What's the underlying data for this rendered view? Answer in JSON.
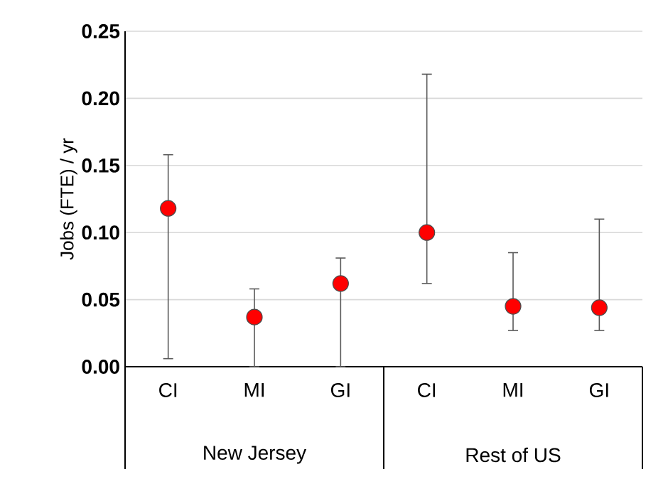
{
  "chart_data": {
    "type": "scatter",
    "ylabel": "Jobs (FTE) / yr",
    "categories": [
      "CI",
      "MI",
      "GI",
      "CI",
      "MI",
      "GI"
    ],
    "values": [
      0.118,
      0.037,
      0.062,
      0.1,
      0.045,
      0.044
    ],
    "errors": [
      [
        0.006,
        0.158
      ],
      [
        0.0,
        0.058
      ],
      [
        0.0,
        0.081
      ],
      [
        0.062,
        0.218
      ],
      [
        0.027,
        0.085
      ],
      [
        0.027,
        0.11
      ]
    ],
    "color": "#ff0000",
    "grid": "y",
    "ylim": [
      0,
      0.25
    ],
    "yticks": [
      {
        "value": 0,
        "label": "0.00"
      },
      {
        "value": 0.05,
        "label": "0.05"
      },
      {
        "value": 0.1,
        "label": "0.10"
      },
      {
        "value": 0.15,
        "label": "0.15"
      },
      {
        "value": 0.2,
        "label": "0.20"
      },
      {
        "value": 0.25,
        "label": "0.25"
      }
    ],
    "annotations": [
      "New Jersey",
      "Rest of US"
    ]
  }
}
